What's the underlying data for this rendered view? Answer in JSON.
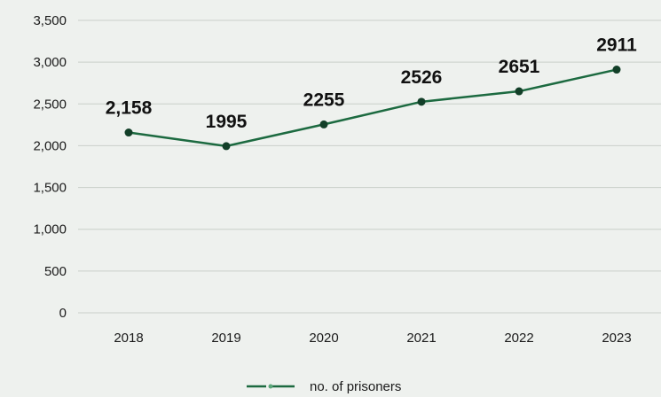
{
  "chart_data": {
    "type": "line",
    "categories": [
      "2018",
      "2019",
      "2020",
      "2021",
      "2022",
      "2023"
    ],
    "series": [
      {
        "name": "no. of prisoners",
        "values": [
          2158,
          1995,
          2255,
          2526,
          2651,
          2911
        ],
        "labels": [
          "2,158",
          "1995",
          "2255",
          "2526",
          "2651",
          "2911"
        ],
        "color": "#1c6a40"
      }
    ],
    "yticks": [
      "0",
      "500",
      "1,000",
      "1,500",
      "2,000",
      "2,500",
      "3,000",
      "3,500"
    ],
    "ylim": [
      0,
      3500
    ],
    "grid": true,
    "legend_position": "bottom",
    "background": "#eef1ee",
    "gridline_color": "#c9cfc9"
  }
}
